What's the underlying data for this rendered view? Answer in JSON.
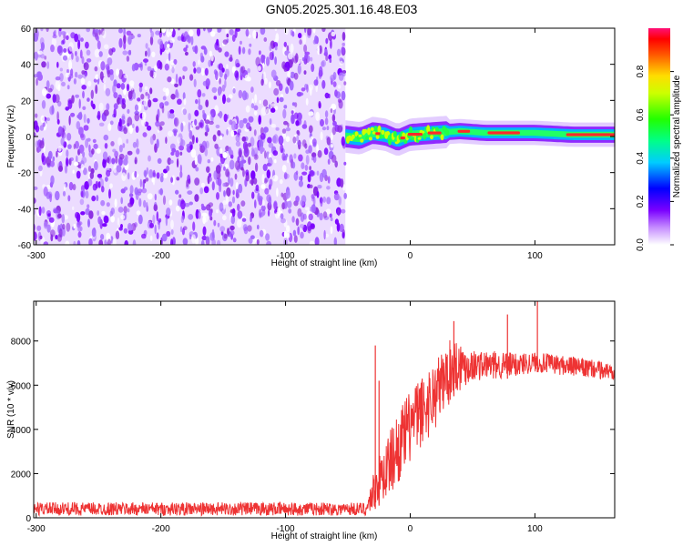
{
  "title": "GN05.2025.301.16.48.E03",
  "chart_data": [
    {
      "type": "heatmap",
      "xlabel": "Height of straight line (km)",
      "ylabel": "Frequency (Hz)",
      "xlim": [
        -302,
        164
      ],
      "ylim": [
        -60,
        60
      ],
      "x_ticks": [
        -300,
        -200,
        -100,
        0,
        100
      ],
      "y_ticks": [
        -60,
        -40,
        -20,
        0,
        20,
        40,
        60
      ],
      "noise_region_x": [
        -302,
        -52
      ],
      "signal_band": [
        {
          "x": -52,
          "f": 0
        },
        {
          "x": -40,
          "f": -1
        },
        {
          "x": -30,
          "f": 2
        },
        {
          "x": -20,
          "f": 1
        },
        {
          "x": -10,
          "f": -2
        },
        {
          "x": 0,
          "f": 1
        },
        {
          "x": 20,
          "f": 2
        },
        {
          "x": 40,
          "f": 3
        },
        {
          "x": 60,
          "f": 2
        },
        {
          "x": 80,
          "f": 2
        },
        {
          "x": 100,
          "f": 2
        },
        {
          "x": 130,
          "f": 1
        },
        {
          "x": 164,
          "f": 1
        }
      ],
      "colorbar": {
        "label": "Normalized spectral amplitude",
        "range": [
          0,
          1
        ],
        "ticks": [
          "0.0",
          "0.2",
          "0.4",
          "0.6",
          "0.8"
        ]
      },
      "grid": false
    },
    {
      "type": "line",
      "xlabel": "Height of straight line (km)",
      "ylabel": "SNR (10 * v/v)",
      "xlim": [
        -302,
        164
      ],
      "ylim": [
        0,
        9800
      ],
      "x_ticks": [
        -300,
        -200,
        -100,
        0,
        100
      ],
      "y_ticks": [
        0,
        2000,
        4000,
        6000,
        8000
      ],
      "series": [
        {
          "color": "#ee3333",
          "envelope": [
            {
              "x": -302,
              "lo": 100,
              "hi": 700
            },
            {
              "x": -150,
              "lo": 100,
              "hi": 700
            },
            {
              "x": -35,
              "lo": 100,
              "hi": 700
            },
            {
              "x": -30,
              "lo": 300,
              "hi": 2000
            },
            {
              "x": -20,
              "lo": 800,
              "hi": 3500
            },
            {
              "x": -10,
              "lo": 1500,
              "hi": 4800
            },
            {
              "x": 0,
              "lo": 2500,
              "hi": 5800
            },
            {
              "x": 20,
              "lo": 4000,
              "hi": 7200
            },
            {
              "x": 35,
              "lo": 5500,
              "hi": 8300
            },
            {
              "x": 50,
              "lo": 6200,
              "hi": 7600
            },
            {
              "x": 80,
              "lo": 6300,
              "hi": 7500
            },
            {
              "x": 100,
              "lo": 6600,
              "hi": 7500
            },
            {
              "x": 130,
              "lo": 6400,
              "hi": 7300
            },
            {
              "x": 164,
              "lo": 6200,
              "hi": 7000
            }
          ],
          "spikes": [
            {
              "x": -28,
              "value": 7800
            },
            {
              "x": -25,
              "value": 6200
            },
            {
              "x": 35,
              "value": 8900
            },
            {
              "x": 78,
              "value": 9200
            },
            {
              "x": 102,
              "value": 9800
            }
          ]
        }
      ],
      "grid": false
    }
  ]
}
